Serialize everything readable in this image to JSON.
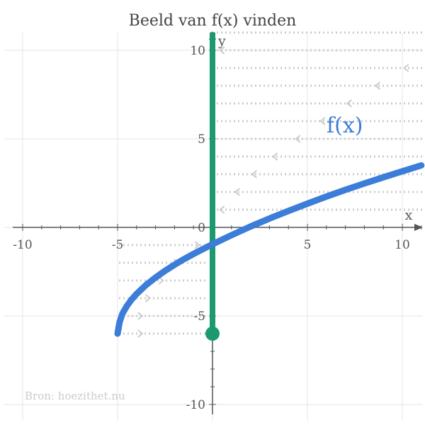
{
  "chart_data": {
    "type": "line",
    "title": "Beeld van f(x) vinden",
    "xlabel": "x",
    "ylabel": "y",
    "xlim": [
      -10.5,
      11
    ],
    "ylim": [
      -10.5,
      11
    ],
    "x_ticks": [
      -10,
      -5,
      0,
      5,
      10
    ],
    "y_ticks": [
      -10,
      -5,
      5,
      10
    ],
    "x_tick_labels": [
      "-10",
      "-5",
      "0",
      "5",
      "10"
    ],
    "y_tick_labels": [
      "-10",
      "-5",
      "5",
      "10"
    ],
    "grid": true,
    "series": [
      {
        "name": "f(x)",
        "color": "#3b7dd8",
        "x": [
          -5,
          -4.9,
          -4.75,
          -4.5,
          -4.25,
          -4,
          -3.5,
          -3,
          -2.5,
          -2,
          -1.5,
          -1,
          0,
          1,
          2,
          3,
          4,
          5,
          6,
          7,
          8,
          9,
          10,
          11
        ],
        "y": [
          -6,
          -5.37,
          -4.88,
          -4.42,
          -4.06,
          -3.76,
          -3.25,
          -2.83,
          -2.45,
          -2.11,
          -1.79,
          -1.5,
          -0.95,
          -0.44,
          0.05,
          0.5,
          0.93,
          1.34,
          1.74,
          2.12,
          2.48,
          2.83,
          3.17,
          3.5
        ]
      }
    ],
    "range": {
      "color": "#1a9a6e",
      "x": 0,
      "y_from": -6,
      "y_to": 11,
      "endpoint": [
        0,
        -6
      ]
    },
    "arrows": {
      "color": "#cccccc",
      "rows": [
        {
          "y": 11,
          "tip_x": null
        },
        {
          "y": 10,
          "tip_x": 0.4
        },
        {
          "y": 9,
          "tip_x": 10.1
        },
        {
          "y": 8,
          "tip_x": 8.6
        },
        {
          "y": 7,
          "tip_x": 7.1
        },
        {
          "y": 6,
          "tip_x": 5.7
        },
        {
          "y": 5,
          "tip_x": 4.4
        },
        {
          "y": 4,
          "tip_x": 3.2
        },
        {
          "y": 3,
          "tip_x": 2.1
        },
        {
          "y": 2,
          "tip_x": 1.2
        },
        {
          "y": 1,
          "tip_x": 0.4
        },
        {
          "y": -1,
          "tip_x": -0.7
        },
        {
          "y": -2,
          "tip_x": -1.8
        },
        {
          "y": -3,
          "tip_x": -2.6
        },
        {
          "y": -4,
          "tip_x": -3.3
        },
        {
          "y": -5,
          "tip_x": -3.7
        },
        {
          "y": -6,
          "tip_x": -3.7
        }
      ]
    },
    "source": "Bron: hoezithet.nu"
  }
}
